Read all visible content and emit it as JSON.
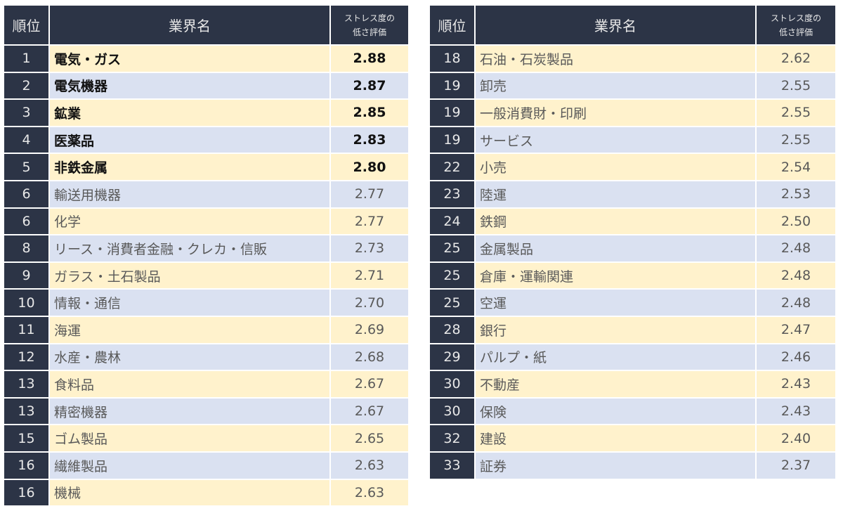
{
  "headers": {
    "rank": "順位",
    "name": "業界名",
    "score_line1": "ストレス度の",
    "score_line2": "低さ評価"
  },
  "colors": {
    "header": "#2c3446",
    "row_odd": "#fff2cc",
    "row_even": "#dae1f1"
  },
  "left": [
    {
      "rank": "1",
      "name": "電気・ガス",
      "score": "2.88",
      "bold": true
    },
    {
      "rank": "2",
      "name": "電気機器",
      "score": "2.87",
      "bold": true
    },
    {
      "rank": "3",
      "name": "鉱業",
      "score": "2.85",
      "bold": true
    },
    {
      "rank": "4",
      "name": "医薬品",
      "score": "2.83",
      "bold": true
    },
    {
      "rank": "5",
      "name": "非鉄金属",
      "score": "2.80",
      "bold": true
    },
    {
      "rank": "6",
      "name": "輸送用機器",
      "score": "2.77"
    },
    {
      "rank": "6",
      "name": "化学",
      "score": "2.77"
    },
    {
      "rank": "8",
      "name": "リース・消費者金融・クレカ・信販",
      "score": "2.73"
    },
    {
      "rank": "9",
      "name": "ガラス・土石製品",
      "score": "2.71"
    },
    {
      "rank": "10",
      "name": "情報・通信",
      "score": "2.70"
    },
    {
      "rank": "11",
      "name": "海運",
      "score": "2.69"
    },
    {
      "rank": "12",
      "name": "水産・農林",
      "score": "2.68"
    },
    {
      "rank": "13",
      "name": "食料品",
      "score": "2.67"
    },
    {
      "rank": "13",
      "name": "精密機器",
      "score": "2.67"
    },
    {
      "rank": "15",
      "name": "ゴム製品",
      "score": "2.65"
    },
    {
      "rank": "16",
      "name": "繊維製品",
      "score": "2.63"
    },
    {
      "rank": "16",
      "name": "機械",
      "score": "2.63"
    }
  ],
  "right": [
    {
      "rank": "18",
      "name": "石油・石炭製品",
      "score": "2.62"
    },
    {
      "rank": "19",
      "name": "卸売",
      "score": "2.55"
    },
    {
      "rank": "19",
      "name": "一般消費財・印刷",
      "score": "2.55"
    },
    {
      "rank": "19",
      "name": "サービス",
      "score": "2.55"
    },
    {
      "rank": "22",
      "name": "小売",
      "score": "2.54"
    },
    {
      "rank": "23",
      "name": "陸運",
      "score": "2.53"
    },
    {
      "rank": "24",
      "name": "鉄鋼",
      "score": "2.50"
    },
    {
      "rank": "25",
      "name": "金属製品",
      "score": "2.48"
    },
    {
      "rank": "25",
      "name": "倉庫・運輸関連",
      "score": "2.48"
    },
    {
      "rank": "25",
      "name": "空運",
      "score": "2.48"
    },
    {
      "rank": "28",
      "name": "銀行",
      "score": "2.47"
    },
    {
      "rank": "29",
      "name": "パルプ・紙",
      "score": "2.46"
    },
    {
      "rank": "30",
      "name": "不動産",
      "score": "2.43"
    },
    {
      "rank": "30",
      "name": "保険",
      "score": "2.43"
    },
    {
      "rank": "32",
      "name": "建設",
      "score": "2.40"
    },
    {
      "rank": "33",
      "name": "証券",
      "score": "2.37"
    }
  ]
}
